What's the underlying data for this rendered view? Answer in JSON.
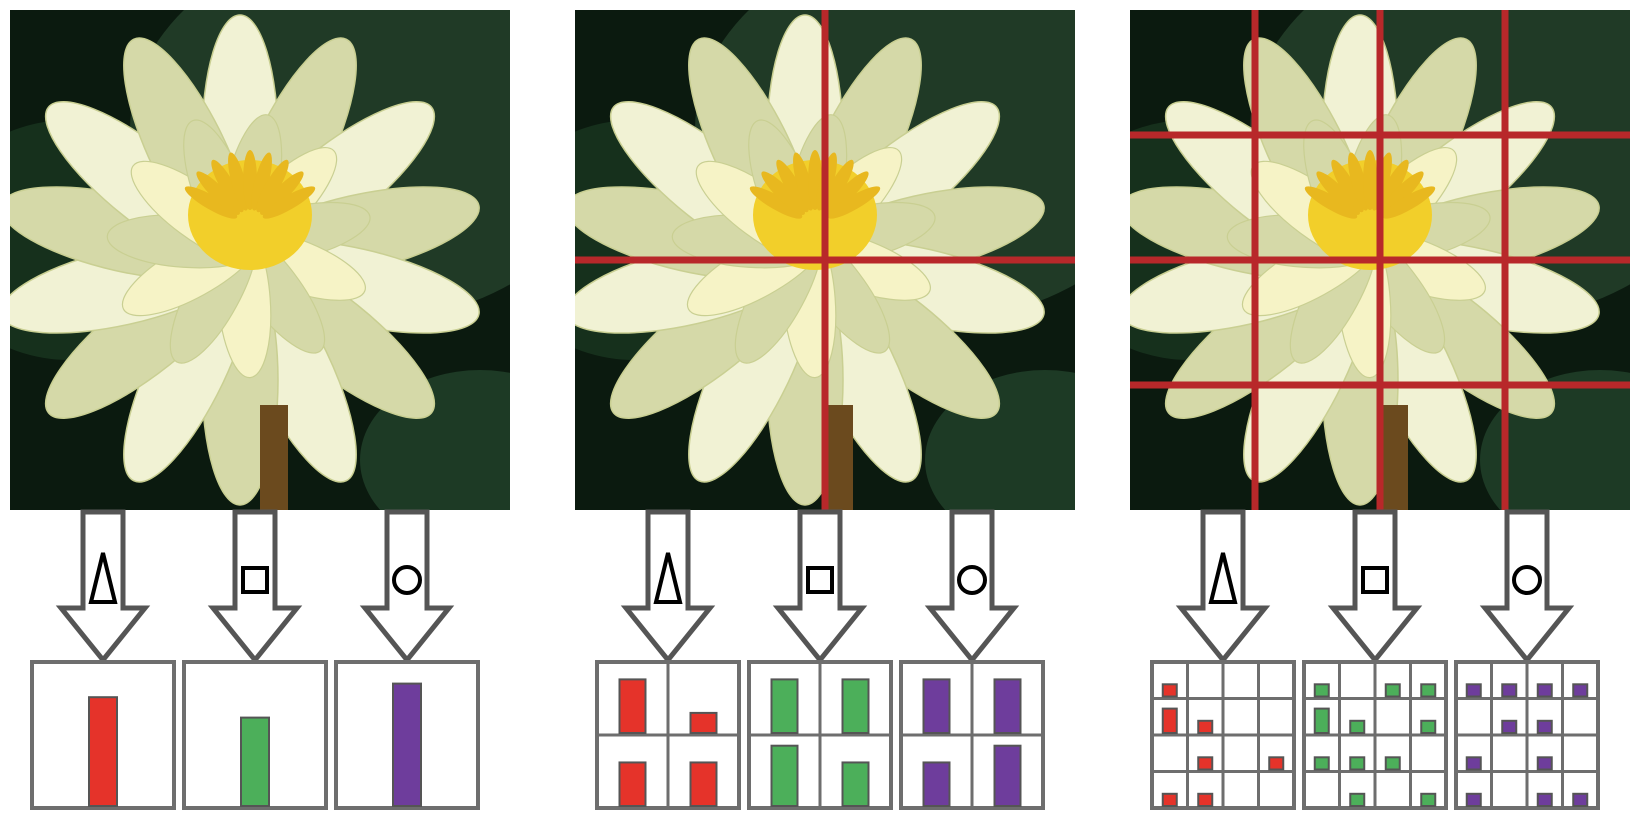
{
  "colors": {
    "background": "#ffffff",
    "grid_line": "#b8282a",
    "arrow_stroke": "#555555",
    "box_stroke": "#6e6e6e",
    "feature_red": "#e5332a",
    "feature_green": "#4caf5a",
    "feature_purple": "#6e3d9c",
    "leaf_dark": "#0b1a0f",
    "leaf_green": "#203a26",
    "petal": "#f1f2d4",
    "petal_shade": "#d5d9a8",
    "flower_center": "#f2cf2a"
  },
  "features": [
    {
      "name": "triangle",
      "color_key": "feature_red"
    },
    {
      "name": "square",
      "color_key": "feature_green"
    },
    {
      "name": "circle",
      "color_key": "feature_purple"
    }
  ],
  "panels": [
    {
      "grid_divisions": 1,
      "histograms": [
        {
          "feature": "triangle",
          "cells": [
            [
              0.8
            ]
          ]
        },
        {
          "feature": "square",
          "cells": [
            [
              0.65
            ]
          ]
        },
        {
          "feature": "circle",
          "cells": [
            [
              0.9
            ]
          ]
        }
      ]
    },
    {
      "grid_divisions": 2,
      "histograms": [
        {
          "feature": "triangle",
          "cells": [
            [
              0.8,
              0.3
            ],
            [
              0.65,
              0.65
            ]
          ]
        },
        {
          "feature": "square",
          "cells": [
            [
              0.8,
              0.8
            ],
            [
              0.9,
              0.65
            ]
          ]
        },
        {
          "feature": "circle",
          "cells": [
            [
              0.8,
              0.8
            ],
            [
              0.65,
              0.9
            ]
          ]
        }
      ]
    },
    {
      "grid_divisions": 4,
      "histograms": [
        {
          "feature": "triangle",
          "cells": [
            [
              0.4,
              0,
              0,
              0
            ],
            [
              0.8,
              0.4,
              0,
              0
            ],
            [
              0,
              0.4,
              0,
              0.4
            ],
            [
              0.4,
              0.4,
              0,
              0
            ]
          ]
        },
        {
          "feature": "square",
          "cells": [
            [
              0.4,
              0,
              0.4,
              0.4
            ],
            [
              0.8,
              0.4,
              0,
              0.4
            ],
            [
              0.4,
              0.4,
              0.4,
              0
            ],
            [
              0,
              0.4,
              0,
              0.4
            ]
          ]
        },
        {
          "feature": "circle",
          "cells": [
            [
              0.4,
              0.4,
              0.4,
              0.4
            ],
            [
              0,
              0.4,
              0.4,
              0
            ],
            [
              0.4,
              0,
              0.4,
              0
            ],
            [
              0.4,
              0,
              0.4,
              0.4
            ]
          ]
        }
      ]
    }
  ]
}
